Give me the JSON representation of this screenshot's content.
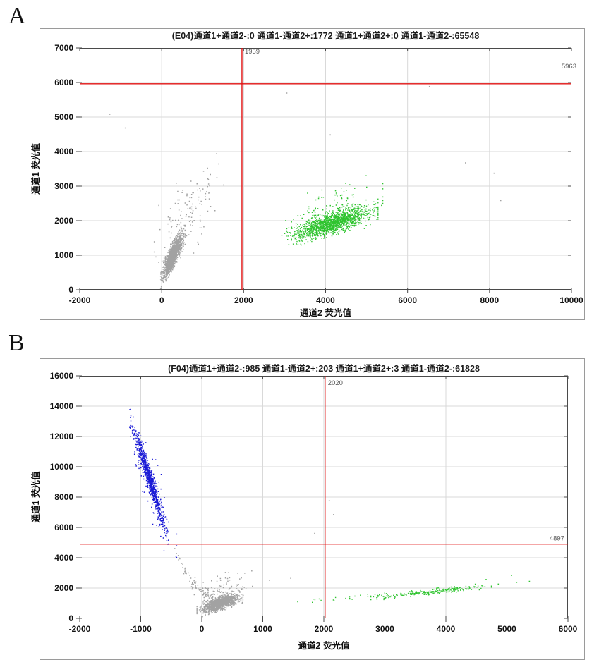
{
  "page": {
    "background": "#ffffff"
  },
  "panels": [
    {
      "letter": "A"
    },
    {
      "letter": "B"
    }
  ],
  "chart_data": [
    {
      "type": "scatter",
      "well": "E04",
      "title": "(E04)通道1+通道2-:0   通道1-通道2+:1772   通道1+通道2+:0   通道1-通道2-:65548",
      "quadrant_counts": {
        "ch1pos_ch2neg": 0,
        "ch1neg_ch2pos": 1772,
        "ch1pos_ch2pos": 0,
        "ch1neg_ch2neg": 65548
      },
      "xlabel": "通道2 荧光值",
      "ylabel": "通道1 荧光值",
      "xlim": [
        -2000,
        10000
      ],
      "xtick_step": 2000,
      "ylim": [
        0,
        7000
      ],
      "ytick_step": 1000,
      "grid": true,
      "threshold_x": {
        "value": 1959,
        "label": "1959"
      },
      "threshold_y": {
        "value": 5963,
        "label": "5963"
      },
      "colors": {
        "threshold": "#e01010",
        "gray": "#a2a2a2",
        "green": "#2fc42f",
        "grid": "#d9d9d9",
        "axis": "#4a4a4a",
        "outer_box": "#9a9a9a",
        "title": "#1a1a1a",
        "threshold_label": "#5a5a5a"
      },
      "clusters": [
        {
          "kind": "gauss",
          "color": "gray",
          "n": 1700,
          "cx": 260,
          "cy": 1000,
          "sx": 115,
          "slope": 2.1,
          "sy": 160,
          "clamp": 2.6,
          "size": 1.4
        },
        {
          "kind": "gauss",
          "color": "gray",
          "n": 130,
          "cx": 620,
          "cy": 2150,
          "sx": 370,
          "slope": 1.2,
          "sy": 500,
          "clamp": 2.2,
          "size": 1.5
        },
        {
          "kind": "gauss",
          "color": "green",
          "n": 1500,
          "cx": 4150,
          "cy": 1950,
          "sx": 430,
          "slope": 0.35,
          "sy": 150,
          "clamp": 2.6,
          "size": 1.4
        },
        {
          "kind": "gauss",
          "color": "green",
          "n": 140,
          "cx": 4150,
          "cy": 2300,
          "sx": 560,
          "slope": 0.4,
          "sy": 330,
          "clamp": 2.2,
          "size": 1.5
        }
      ],
      "outlier_points": [
        {
          "color": "gray",
          "points": [
            [
              -1280,
              5100
            ],
            [
              -900,
              4700
            ],
            [
              3040,
              5710
            ],
            [
              6520,
              5900
            ],
            [
              4100,
              4500
            ],
            [
              8100,
              3390
            ],
            [
              7400,
              3690
            ],
            [
              8260,
              2600
            ],
            [
              1500,
              3050
            ],
            [
              341,
              3100
            ]
          ]
        }
      ]
    },
    {
      "type": "scatter",
      "well": "F04",
      "title": "(F04)通道1+通道2-:985   通道1-通道2+:203   通道1+通道2+:3   通道1-通道2-:61828",
      "quadrant_counts": {
        "ch1pos_ch2neg": 985,
        "ch1neg_ch2pos": 203,
        "ch1pos_ch2pos": 3,
        "ch1neg_ch2neg": 61828
      },
      "xlabel": "通道2 荧光值",
      "ylabel": "通道1 荧光值",
      "xlim": [
        -2000,
        6000
      ],
      "xtick_step": 1000,
      "ylim": [
        0,
        16000
      ],
      "ytick_step": 2000,
      "grid": true,
      "threshold_x": {
        "value": 2020,
        "label": "2020"
      },
      "threshold_y": {
        "value": 4897,
        "label": "4897"
      },
      "colors": {
        "threshold": "#e01010",
        "gray": "#a2a2a2",
        "green": "#2fc42f",
        "blue": "#1a1ad6",
        "grid": "#d9d9d9",
        "axis": "#4a4a4a",
        "outer_box": "#9a9a9a",
        "title": "#1a1a1a",
        "threshold_label": "#5a5a5a"
      },
      "clusters": [
        {
          "kind": "gauss",
          "color": "blue",
          "n": 850,
          "cx": -870,
          "cy": 9350,
          "sx": 118,
          "slope": -12.5,
          "sy": 400,
          "clamp": 2.7,
          "size": 1.4
        },
        {
          "kind": "gauss",
          "color": "blue",
          "n": 130,
          "cx": -800,
          "cy": 8500,
          "sx": 165,
          "slope": -10.5,
          "sy": 950,
          "clamp": 2.3,
          "size": 1.5
        },
        {
          "kind": "curve",
          "color": "gray",
          "n": 65,
          "x0": -500,
          "x1": 150,
          "xv": 100,
          "a": 1750,
          "k": 0.0095,
          "noise": 170,
          "size": 1.5
        },
        {
          "kind": "gauss",
          "color": "gray",
          "n": 1400,
          "cx": 290,
          "cy": 1020,
          "sx": 145,
          "slope": 1.25,
          "sy": 210,
          "clamp": 2.6,
          "size": 1.4
        },
        {
          "kind": "gauss",
          "color": "gray",
          "n": 90,
          "cx": 330,
          "cy": 1950,
          "sx": 230,
          "slope": 1.4,
          "sy": 420,
          "clamp": 2.2,
          "size": 1.5
        },
        {
          "kind": "gauss",
          "color": "green",
          "n": 260,
          "cx": 3750,
          "cy": 1780,
          "sx": 470,
          "slope": 0.42,
          "sy": 85,
          "clamp": 2.1,
          "size": 1.4
        },
        {
          "kind": "gauss",
          "color": "green",
          "n": 28,
          "cx": 2350,
          "cy": 1380,
          "sx": 420,
          "slope": 0.3,
          "sy": 90,
          "clamp": 2.0,
          "size": 1.4
        }
      ],
      "outlier_points": [
        {
          "color": "gray",
          "points": [
            [
              2080,
              7800
            ],
            [
              2150,
              6880
            ],
            [
              1840,
              5640
            ],
            [
              1100,
              2550
            ],
            [
              1450,
              2680
            ]
          ]
        },
        {
          "color": "green",
          "points": [
            [
              4850,
              2300
            ],
            [
              5065,
              2880
            ],
            [
              5150,
              2420
            ],
            [
              5360,
              2480
            ],
            [
              4650,
              2600
            ]
          ]
        }
      ]
    }
  ]
}
